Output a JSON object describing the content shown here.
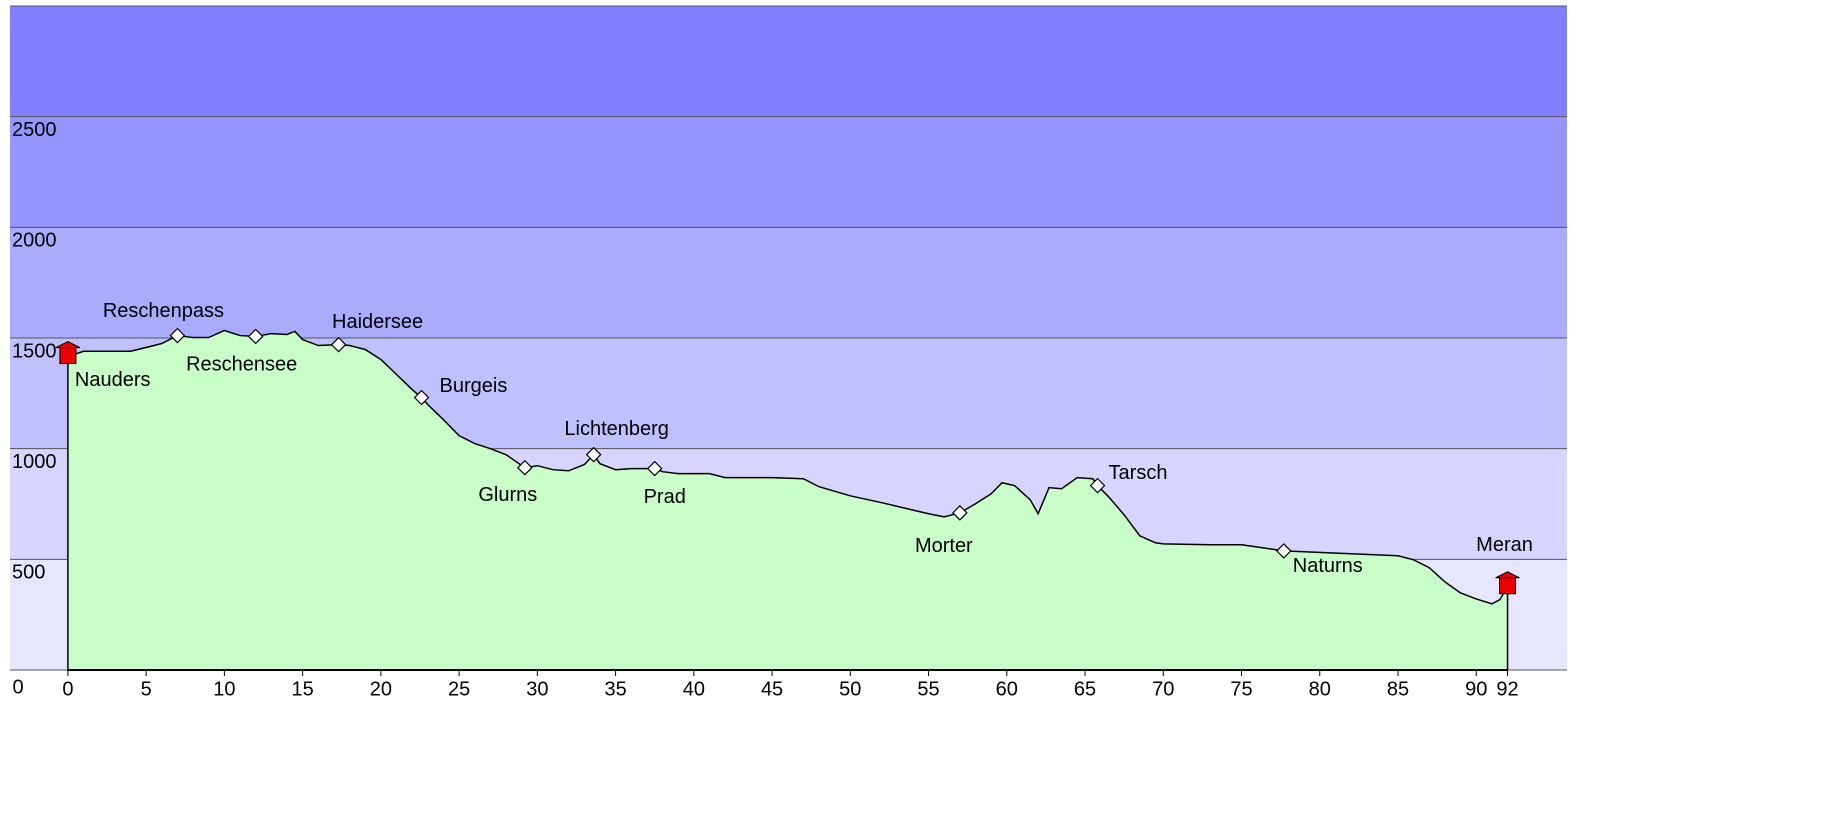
{
  "chart_data": {
    "type": "area",
    "x": [
      0,
      1,
      2,
      4,
      5,
      6,
      7,
      8,
      9,
      10,
      11,
      12,
      13,
      14,
      14.5,
      15,
      16,
      17.3,
      18,
      19,
      20,
      21,
      22,
      22.6,
      23,
      24,
      25,
      26,
      27,
      28,
      29.2,
      30,
      31,
      32,
      33,
      33.6,
      34,
      35,
      36,
      37.5,
      38,
      39,
      41,
      42,
      45,
      47,
      48,
      50,
      52,
      55,
      56,
      57,
      58,
      59,
      59.7,
      60.5,
      61.5,
      62,
      62.7,
      63.5,
      64.5,
      65.5,
      65.8,
      66.5,
      67.5,
      68.5,
      69.5,
      70,
      73,
      75,
      77.7,
      79,
      82,
      85,
      86,
      87,
      88,
      89,
      90,
      91,
      91.5,
      92
    ],
    "values": [
      1416,
      1440,
      1440,
      1440,
      1457,
      1475,
      1511,
      1502,
      1502,
      1534,
      1511,
      1507,
      1520,
      1516,
      1530,
      1493,
      1466,
      1470,
      1466,
      1448,
      1403,
      1335,
      1267,
      1231,
      1199,
      1131,
      1059,
      1023,
      1000,
      973,
      914,
      923,
      905,
      900,
      928,
      973,
      932,
      905,
      910,
      910,
      896,
      887,
      887,
      869,
      869,
      864,
      828,
      787,
      756,
      706,
      692,
      710,
      751,
      796,
      846,
      833,
      769,
      706,
      824,
      819,
      869,
      864,
      833,
      783,
      701,
      606,
      575,
      570,
      566,
      566,
      538,
      534,
      525,
      516,
      498,
      462,
      398,
      348,
      321,
      299,
      317,
      376
    ],
    "color": "#c8fcc8",
    "points": [
      {
        "name": "Nauders",
        "x": 0,
        "y": 1416,
        "marker": "flag"
      },
      {
        "name": "Reschenpass",
        "x": 7,
        "y": 1511,
        "marker": "diamond"
      },
      {
        "name": "Reschensee",
        "x": 12,
        "y": 1507,
        "marker": "diamond"
      },
      {
        "name": "Haidersee",
        "x": 17.3,
        "y": 1470,
        "marker": "diamond"
      },
      {
        "name": "Burgeis",
        "x": 22.6,
        "y": 1231,
        "marker": "diamond"
      },
      {
        "name": "Glurns",
        "x": 29.2,
        "y": 914,
        "marker": "diamond"
      },
      {
        "name": "Lichtenberg",
        "x": 33.6,
        "y": 973,
        "marker": "diamond"
      },
      {
        "name": "Prad",
        "x": 37.5,
        "y": 910,
        "marker": "diamond"
      },
      {
        "name": "Morter",
        "x": 57,
        "y": 710,
        "marker": "diamond"
      },
      {
        "name": "Tarsch",
        "x": 65.8,
        "y": 833,
        "marker": "diamond"
      },
      {
        "name": "Naturns",
        "x": 77.7,
        "y": 538,
        "marker": "diamond"
      },
      {
        "name": "Meran",
        "x": 92,
        "y": 376,
        "marker": "flag"
      }
    ],
    "xlim": [
      -3.7,
      95.8
    ],
    "xticks": [
      0,
      5,
      10,
      15,
      20,
      25,
      30,
      35,
      40,
      45,
      50,
      55,
      60,
      65,
      70,
      75,
      80,
      85,
      90,
      92
    ],
    "ylim": [
      0,
      3000
    ],
    "yticks": [
      0,
      500,
      1000,
      1500,
      2000,
      2500
    ],
    "band_colors": [
      "#e6e6ff",
      "#d5d5ff",
      "#c0c0ff",
      "#aaaaff",
      "#9595ff",
      "#8080ff"
    ]
  }
}
